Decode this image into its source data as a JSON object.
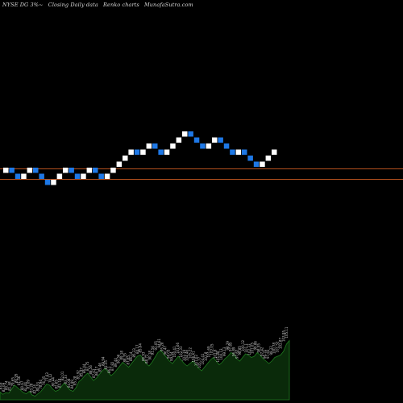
{
  "header": {
    "exchange_symbol": "NYSE DG 3%~",
    "chart_kind": "Closing Daily data",
    "renko_label": "Renko  charts",
    "site": "MunafaSutra.com"
  },
  "colors": {
    "background": "#000000",
    "up_brick": "#ffffff",
    "down_brick": "#1e78e6",
    "level_line": "#b4501e",
    "volume_fill": "#0a2a0a",
    "volume_stroke": "#1f7a1f",
    "volume_label": "#c8c8c8"
  },
  "chart_data": [
    {
      "type": "renko",
      "directions": [
        "up",
        "down",
        "down",
        "up",
        "up",
        "down",
        "down",
        "down",
        "up",
        "up",
        "up",
        "down",
        "down",
        "up",
        "up",
        "down",
        "down",
        "up",
        "up",
        "up",
        "up",
        "up",
        "down",
        "up",
        "up",
        "down",
        "down",
        "up",
        "up",
        "up",
        "up",
        "down",
        "down",
        "down",
        "up",
        "up",
        "down",
        "down",
        "down",
        "up",
        "down",
        "down",
        "down",
        "up",
        "up",
        "up"
      ],
      "reference_lines": 2,
      "grid": false,
      "legend": "none"
    },
    {
      "type": "area",
      "series": "volume",
      "values": [
        13,
        9,
        12,
        11,
        18,
        24,
        20,
        16,
        12,
        10,
        14,
        8,
        6,
        10,
        14,
        20,
        26,
        24,
        18,
        14,
        16,
        22,
        28,
        22,
        16,
        14,
        20,
        30,
        34,
        40,
        44,
        38,
        32,
        36,
        42,
        48,
        52,
        46,
        40,
        44,
        50,
        56,
        62,
        58,
        54,
        60,
        66,
        72,
        74,
        68,
        60,
        56,
        62,
        70,
        78,
        82,
        76,
        70,
        64,
        60,
        66,
        72,
        66,
        60,
        56,
        60,
        64,
        58,
        52,
        48,
        54,
        60,
        66,
        70,
        64,
        58,
        62,
        68,
        72,
        78,
        76,
        68,
        64,
        70,
        76,
        74,
        70,
        72,
        78,
        74,
        68,
        64,
        60,
        64,
        70,
        72,
        74,
        80,
        92,
        98
      ]
    }
  ],
  "volume_labels": [
    "83.8",
    "82.09",
    "80.74",
    "81.48",
    "79.65",
    "80.95",
    "81.56",
    "80.67",
    "82.44",
    "81.09",
    "83.28",
    "82.14",
    "80.53",
    "78.94",
    "76.35",
    "77.63",
    "79.12",
    "80.44",
    "82.65",
    "83.18",
    "82.01",
    "83.33",
    "84.08",
    "84.99",
    "85.28",
    "83.92",
    "85.97",
    "86.44",
    "87.75",
    "88.56",
    "87.63",
    "86.17",
    "85.46",
    "84.94",
    "83.55",
    "86.1",
    "87.82",
    "89.44",
    "90.56",
    "89.18",
    "88.35",
    "87.65",
    "86.14",
    "85.33",
    "84.17",
    "85.64",
    "86.93",
    "88.72",
    "90.18",
    "91.56",
    "93.05",
    "94.61",
    "95.28",
    "96.47",
    "98.03",
    "99.54",
    "100.41",
    "101.66",
    "102.33",
    "103.19",
    "104.46",
    "105.22",
    "106.41",
    "107.02",
    "105.77",
    "104.41",
    "102.8",
    "101.69",
    "102.05",
    "101.6",
    "101.88",
    "100.13",
    "99.13",
    "98.29",
    "97.85",
    "96.89",
    "97.62",
    "98.85",
    "100.12",
    "101.1",
    "102.33",
    "101.05",
    "99.86",
    "98.55",
    "97.42",
    "96.31",
    "97.65",
    "99.22",
    "100.78",
    "101.52",
    "102.87",
    "103.95",
    "105.11"
  ]
}
